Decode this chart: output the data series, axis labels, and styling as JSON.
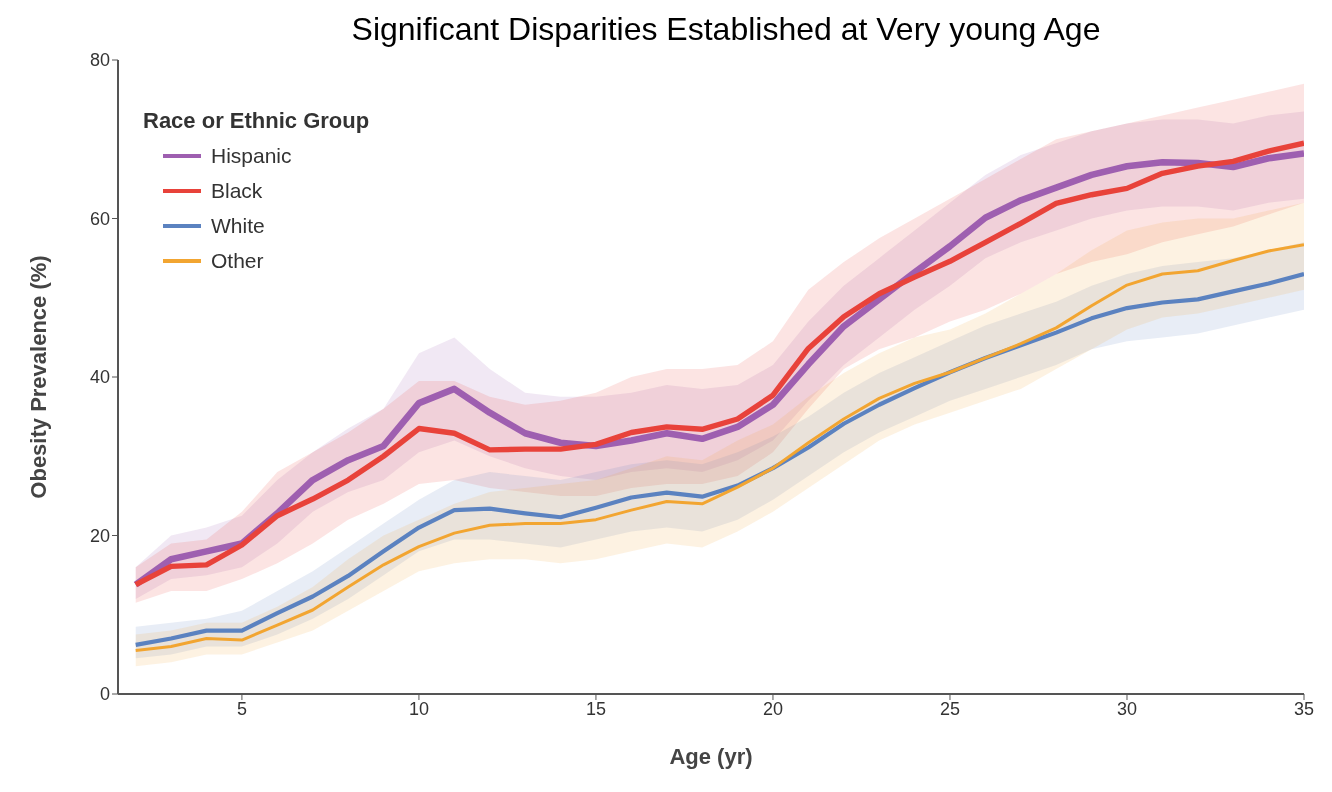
{
  "chart_data": {
    "type": "line",
    "title": "Significant Disparities Established at Very young Age",
    "xlabel": "Age (yr)",
    "ylabel": "Obesity Prevalence (%)",
    "legend_title": "Race or Ethnic Group",
    "legend": "top left",
    "grid": false,
    "marker": "none",
    "line_style": "solid",
    "x": [
      2,
      3,
      4,
      5,
      6,
      7,
      8,
      9,
      10,
      11,
      12,
      13,
      14,
      15,
      16,
      17,
      18,
      19,
      20,
      21,
      22,
      23,
      24,
      25,
      26,
      27,
      28,
      29,
      30,
      31,
      32,
      33,
      34,
      35
    ],
    "xlim": [
      1.5,
      35
    ],
    "xticks": [
      5,
      10,
      15,
      20,
      25,
      30,
      35
    ],
    "ylim": [
      0,
      80
    ],
    "yticks": [
      0,
      20,
      40,
      60,
      80
    ],
    "series": [
      {
        "name": "Hispanic",
        "color": "#9e5fb0",
        "values": [
          13.8,
          17,
          18,
          19,
          22.8,
          27,
          29.5,
          31.3,
          36.7,
          38.5,
          35.5,
          32.9,
          31.7,
          31.3,
          32,
          32.9,
          32.2,
          33.7,
          36.5,
          41.6,
          46.4,
          49.8,
          53.2,
          56.5,
          60.1,
          62.3,
          63.9,
          65.5,
          66.6,
          67.1,
          67,
          66.5,
          67.6,
          68.2
        ],
        "lower": [
          12,
          14.5,
          15,
          16,
          19,
          23,
          25.5,
          27,
          30.5,
          32,
          30,
          28.5,
          27.5,
          27,
          28,
          28.5,
          28,
          29.5,
          32,
          37,
          41.5,
          45,
          48.5,
          51.5,
          55,
          57,
          58.5,
          60,
          61,
          61.5,
          61.5,
          61,
          62,
          62.5
        ],
        "upper": [
          16,
          20,
          21,
          22.5,
          27,
          30.5,
          33.5,
          36,
          43,
          45,
          41,
          38,
          37.5,
          37.5,
          38,
          39,
          38.5,
          39,
          41.5,
          47,
          51.5,
          55,
          58.5,
          62,
          65.5,
          68,
          69.5,
          71,
          72,
          72.5,
          72.5,
          72,
          73,
          73.5
        ]
      },
      {
        "name": "Black",
        "color": "#e8423a",
        "values": [
          13.8,
          16.1,
          16.3,
          18.8,
          22.5,
          24.6,
          27,
          30,
          33.5,
          32.9,
          30.8,
          30.9,
          30.9,
          31.5,
          33,
          33.7,
          33.4,
          34.7,
          37.7,
          43.6,
          47.6,
          50.5,
          52.6,
          54.6,
          57,
          59.4,
          61.9,
          63,
          63.8,
          65.7,
          66.6,
          67.2,
          68.5,
          69.5
        ],
        "lower": [
          11.5,
          13,
          13,
          14.5,
          16.5,
          19,
          22,
          24,
          26.5,
          27,
          26,
          25.5,
          25,
          25,
          26,
          26.5,
          26.5,
          27.5,
          30.5,
          36,
          41,
          43.5,
          45,
          47,
          48.5,
          50.5,
          53,
          54.5,
          55.5,
          57,
          58,
          59,
          60.5,
          62
        ],
        "upper": [
          16,
          19,
          19.5,
          23,
          28,
          30.5,
          33,
          36,
          39.5,
          39.5,
          37.5,
          36.5,
          37,
          38,
          40,
          41,
          41,
          41.5,
          44.5,
          51,
          54.5,
          57.5,
          60,
          62.5,
          65,
          67.5,
          70,
          71,
          72,
          73,
          74,
          75,
          76,
          77
        ]
      },
      {
        "name": "White",
        "color": "#5b82c0",
        "values": [
          6.2,
          7,
          8,
          8,
          10.2,
          12.3,
          14.9,
          18,
          21,
          23.2,
          23.4,
          22.8,
          22.3,
          23.5,
          24.8,
          25.4,
          24.9,
          26.3,
          28.5,
          31.1,
          34.1,
          36.5,
          38.6,
          40.6,
          42.4,
          44,
          45.6,
          47.4,
          48.7,
          49.4,
          49.8,
          50.8,
          51.8,
          53
        ],
        "lower": [
          4.5,
          5,
          6,
          6,
          7.5,
          9.5,
          12,
          15,
          18,
          19.5,
          19.5,
          19,
          18.5,
          19.5,
          20.5,
          21,
          20.5,
          22,
          24.5,
          27.5,
          30.5,
          33,
          35,
          37,
          38.5,
          40,
          41.5,
          43.5,
          44.5,
          45,
          45.5,
          46.5,
          47.5,
          48.5
        ],
        "upper": [
          8.5,
          9,
          9.5,
          10.5,
          13,
          15.5,
          18.5,
          21.5,
          24.5,
          27,
          28,
          27.5,
          27,
          28,
          29,
          29.5,
          29,
          30.5,
          32.5,
          35,
          38,
          40.5,
          42.5,
          44.5,
          46.5,
          48,
          49.5,
          51.5,
          53,
          54,
          54.5,
          55,
          56,
          57
        ]
      },
      {
        "name": "Other",
        "color": "#f2a531",
        "values": [
          5.5,
          6,
          7,
          6.8,
          8.7,
          10.6,
          13.5,
          16.3,
          18.6,
          20.3,
          21.3,
          21.5,
          21.5,
          22,
          23.2,
          24.3,
          24,
          26.1,
          28.5,
          31.7,
          34.7,
          37.3,
          39.2,
          40.6,
          42.4,
          44.2,
          46.2,
          49,
          51.6,
          53,
          53.4,
          54.7,
          55.9,
          56.7
        ],
        "lower": [
          3.5,
          4,
          5,
          5,
          6.5,
          8,
          10.5,
          13,
          15.5,
          16.5,
          17,
          17,
          16.5,
          17,
          18,
          19,
          18.5,
          20.5,
          23,
          26,
          29,
          32,
          34,
          35.5,
          37,
          38.5,
          41,
          43.5,
          46,
          47.5,
          48,
          49,
          50,
          51
        ],
        "upper": [
          7.5,
          8,
          9,
          9,
          11,
          13.5,
          17,
          20,
          22,
          24,
          25.5,
          26,
          26.5,
          27,
          28.5,
          30,
          29.5,
          32,
          34,
          37.5,
          40.5,
          43,
          45,
          46,
          48,
          50.5,
          53,
          56,
          58.5,
          59.5,
          60,
          60,
          61,
          62
        ]
      }
    ]
  }
}
